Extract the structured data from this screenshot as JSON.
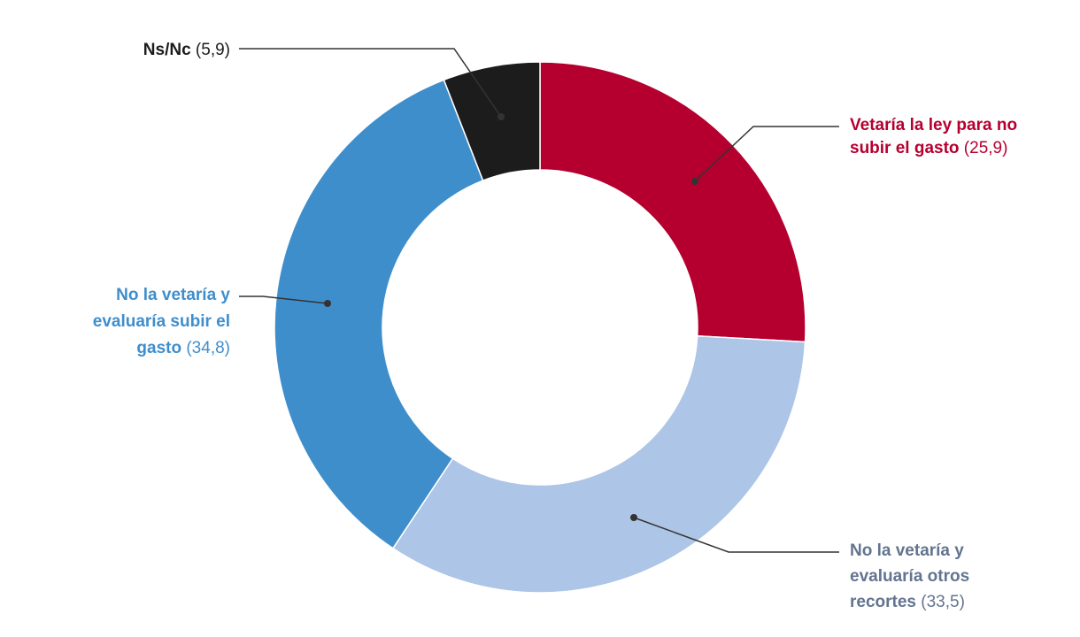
{
  "chart_data": {
    "type": "pie",
    "variant": "donut",
    "title": "",
    "slices": [
      {
        "name_lines": [
          "Vetaría la ley para no",
          "subir el gasto"
        ],
        "value": 25.9,
        "value_label": "(25,9)",
        "color": "#b5002f"
      },
      {
        "name_lines": [
          "No la vetaría y",
          "evaluaría otros",
          "recortes"
        ],
        "value": 33.5,
        "value_label": "(33,5)",
        "color": "#adc5e6",
        "label_color": "#62748f"
      },
      {
        "name_lines": [
          "No la vetaría y",
          "evaluaría subir el",
          "gasto"
        ],
        "value": 34.8,
        "value_label": "(34,8)",
        "color": "#3f8ecc"
      },
      {
        "name_lines": [
          "Ns/Nc"
        ],
        "value": 5.9,
        "value_label": "(5,9)",
        "color": "#1c1c1c"
      }
    ],
    "start_angle_deg": 0,
    "direction": "clockwise",
    "legend": "none"
  }
}
